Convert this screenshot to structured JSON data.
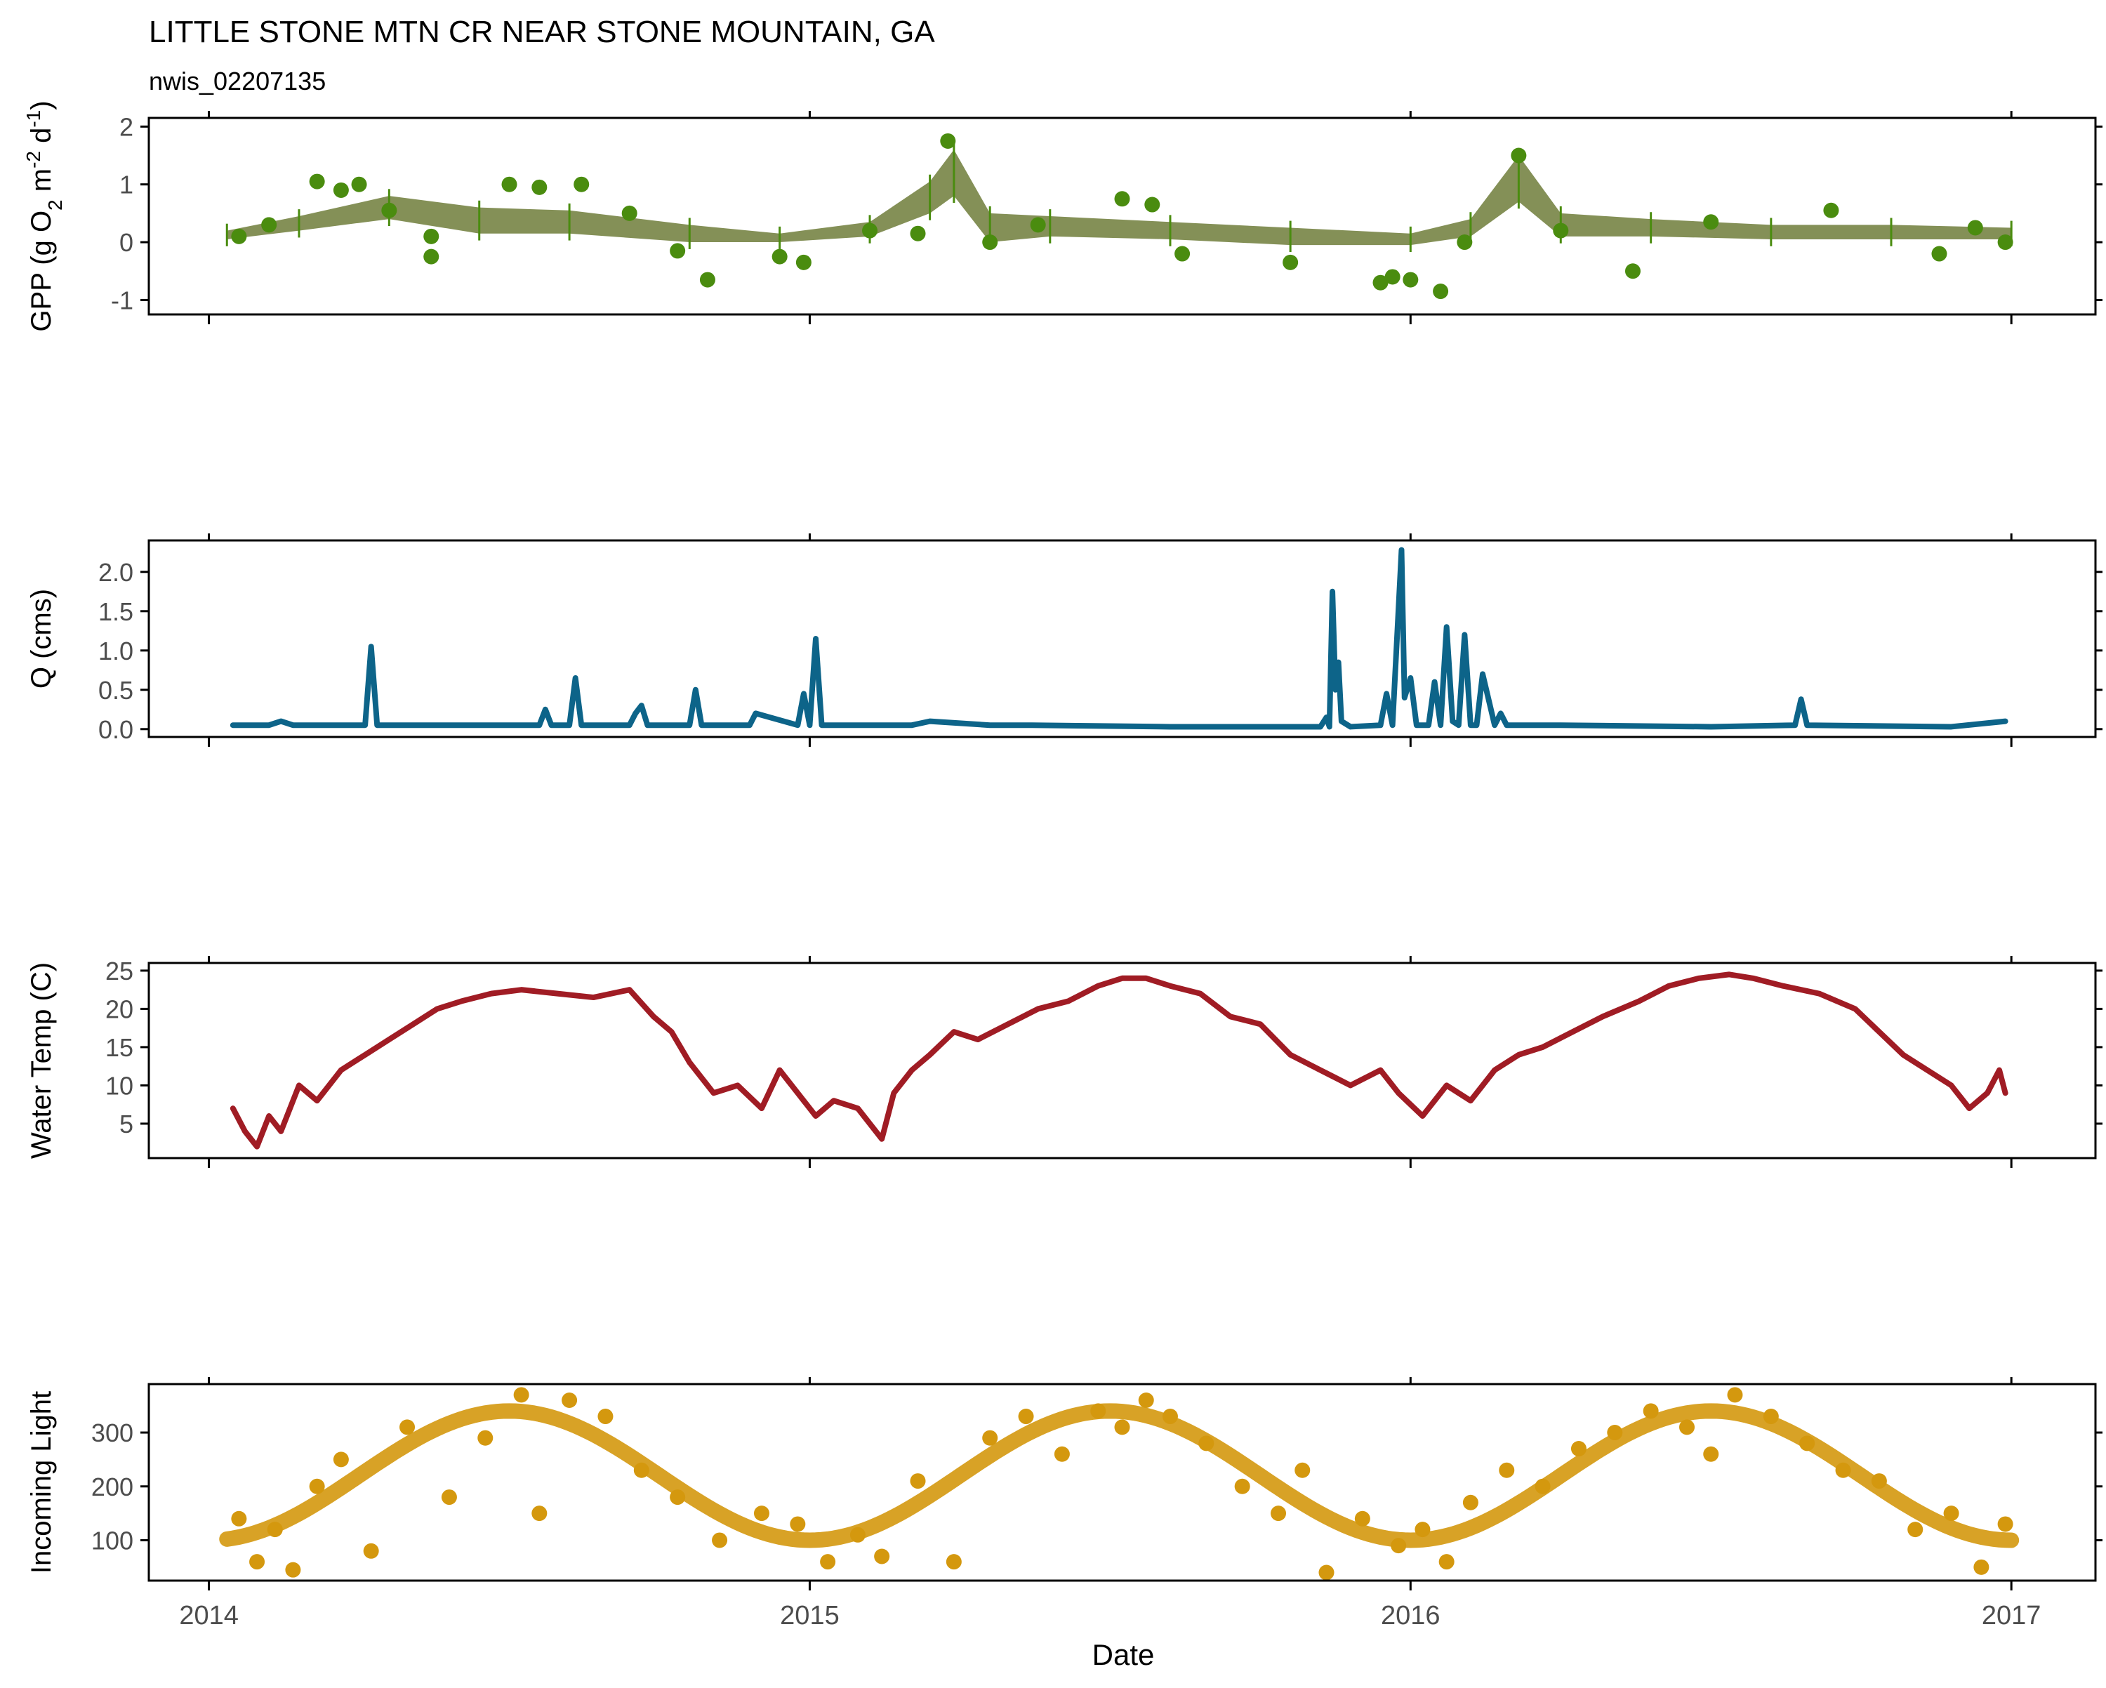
{
  "title": "LITTLE STONE MTN CR NEAR STONE MOUNTAIN, GA",
  "subtitle": "nwis_02207135",
  "xlabel": "Date",
  "colors": {
    "gpp": "#4a8c0f",
    "gpp_band": "#6e7d3a",
    "q": "#0d6489",
    "temp": "#a01c24",
    "light": "#d4980e",
    "axis": "#000000",
    "tick_text": "#4d4d4d"
  },
  "chart_data": [
    {
      "type": "scatter",
      "name": "gpp",
      "ylabel_parts": [
        "GPP (g  O",
        "2",
        " m",
        "-2",
        " d",
        "-1",
        ")"
      ],
      "ylim": [
        -1.25,
        2.15
      ],
      "yticks": [
        -1,
        0,
        1,
        2
      ],
      "yticklabels": [
        "-1",
        "0",
        "1",
        "2"
      ],
      "xlim": [
        2013.9,
        2017.14
      ],
      "xticks": [
        2014,
        2015,
        2016,
        2017
      ],
      "xticklabels": [
        "2014",
        "2015",
        "2016",
        "2017"
      ],
      "band_x": [
        2014.03,
        2014.15,
        2014.3,
        2014.45,
        2014.6,
        2014.8,
        2014.95,
        2015.1,
        2015.2,
        2015.24,
        2015.3,
        2015.4,
        2015.6,
        2015.8,
        2016.0,
        2016.1,
        2016.18,
        2016.25,
        2016.4,
        2016.6,
        2016.8,
        2017.0
      ],
      "band_lo": [
        0.05,
        0.2,
        0.4,
        0.15,
        0.15,
        0.0,
        0.0,
        0.1,
        0.5,
        0.8,
        0.0,
        0.1,
        0.05,
        -0.05,
        -0.05,
        0.1,
        0.7,
        0.1,
        0.1,
        0.05,
        0.05,
        0.05
      ],
      "band_hi": [
        0.2,
        0.45,
        0.8,
        0.6,
        0.55,
        0.3,
        0.15,
        0.35,
        1.05,
        1.6,
        0.5,
        0.45,
        0.35,
        0.25,
        0.15,
        0.4,
        1.5,
        0.5,
        0.4,
        0.3,
        0.3,
        0.25
      ],
      "x": [
        2014.05,
        2014.1,
        2014.18,
        2014.22,
        2014.25,
        2014.3,
        2014.37,
        2014.37,
        2014.5,
        2014.55,
        2014.62,
        2014.7,
        2014.78,
        2014.83,
        2014.95,
        2014.99,
        2015.1,
        2015.18,
        2015.23,
        2015.3,
        2015.38,
        2015.52,
        2015.57,
        2015.62,
        2015.8,
        2015.95,
        2015.97,
        2016.0,
        2016.05,
        2016.09,
        2016.18,
        2016.25,
        2016.37,
        2016.5,
        2016.7,
        2016.88,
        2016.94,
        2016.99
      ],
      "y": [
        0.1,
        0.3,
        1.05,
        0.9,
        1.0,
        0.55,
        -0.25,
        0.1,
        1.0,
        0.95,
        1.0,
        0.5,
        -0.15,
        -0.65,
        -0.25,
        -0.35,
        0.2,
        0.15,
        1.75,
        0.0,
        0.3,
        0.75,
        0.65,
        -0.2,
        -0.35,
        -0.7,
        -0.6,
        -0.65,
        -0.85,
        0.0,
        1.5,
        0.2,
        -0.5,
        0.35,
        0.55,
        -0.2,
        0.25,
        0.0
      ]
    },
    {
      "type": "line",
      "name": "q",
      "ylabel": "Q (cms)",
      "ylim": [
        -0.1,
        2.4
      ],
      "yticks": [
        0.0,
        0.5,
        1.0,
        1.5,
        2.0
      ],
      "yticklabels": [
        "0.0",
        "0.5",
        "1.0",
        "1.5",
        "2.0"
      ],
      "xlim": [
        2013.9,
        2017.14
      ],
      "xticks": [
        2014,
        2015,
        2016,
        2017
      ],
      "x": [
        2014.04,
        2014.1,
        2014.12,
        2014.14,
        2014.18,
        2014.2,
        2014.26,
        2014.27,
        2014.28,
        2014.3,
        2014.36,
        2014.55,
        2014.56,
        2014.57,
        2014.6,
        2014.61,
        2014.62,
        2014.63,
        2014.64,
        2014.7,
        2014.71,
        2014.72,
        2014.73,
        2014.74,
        2014.76,
        2014.8,
        2014.81,
        2014.82,
        2014.9,
        2014.91,
        2014.98,
        2014.99,
        2015.0,
        2015.01,
        2015.02,
        2015.03,
        2015.1,
        2015.17,
        2015.2,
        2015.3,
        2015.37,
        2015.6,
        2015.85,
        2015.86,
        2015.865,
        2015.87,
        2015.875,
        2015.88,
        2015.885,
        2015.9,
        2015.95,
        2015.96,
        2015.97,
        2015.985,
        2015.99,
        2016.0,
        2016.01,
        2016.03,
        2016.04,
        2016.05,
        2016.06,
        2016.07,
        2016.08,
        2016.09,
        2016.1,
        2016.11,
        2016.12,
        2016.14,
        2016.15,
        2016.16,
        2016.2,
        2016.25,
        2016.5,
        2016.64,
        2016.65,
        2016.66,
        2016.9,
        2016.99
      ],
      "y": [
        0.05,
        0.05,
        0.1,
        0.05,
        0.05,
        0.05,
        0.05,
        1.05,
        0.05,
        0.05,
        0.05,
        0.05,
        0.25,
        0.05,
        0.05,
        0.65,
        0.05,
        0.05,
        0.05,
        0.05,
        0.2,
        0.3,
        0.05,
        0.05,
        0.05,
        0.05,
        0.5,
        0.05,
        0.05,
        0.2,
        0.05,
        0.45,
        0.05,
        1.15,
        0.05,
        0.05,
        0.05,
        0.05,
        0.1,
        0.05,
        0.05,
        0.03,
        0.03,
        0.15,
        0.03,
        1.75,
        0.5,
        0.85,
        0.1,
        0.03,
        0.05,
        0.45,
        0.05,
        2.28,
        0.4,
        0.65,
        0.05,
        0.05,
        0.6,
        0.05,
        1.3,
        0.1,
        0.05,
        1.2,
        0.05,
        0.05,
        0.7,
        0.05,
        0.2,
        0.05,
        0.05,
        0.05,
        0.03,
        0.05,
        0.38,
        0.05,
        0.03,
        0.1
      ]
    },
    {
      "type": "line",
      "name": "temp",
      "ylabel": "Water Temp (C)",
      "ylim": [
        0.5,
        26
      ],
      "yticks": [
        5,
        10,
        15,
        20,
        25
      ],
      "yticklabels": [
        "5",
        "10",
        "15",
        "20",
        "25"
      ],
      "xlim": [
        2013.9,
        2017.14
      ],
      "xticks": [
        2014,
        2015,
        2016,
        2017
      ],
      "x": [
        2014.04,
        2014.06,
        2014.08,
        2014.1,
        2014.12,
        2014.15,
        2014.18,
        2014.22,
        2014.26,
        2014.3,
        2014.34,
        2014.38,
        2014.42,
        2014.47,
        2014.52,
        2014.58,
        2014.64,
        2014.7,
        2014.74,
        2014.77,
        2014.8,
        2014.84,
        2014.88,
        2014.92,
        2014.95,
        2014.98,
        2015.01,
        2015.04,
        2015.08,
        2015.12,
        2015.14,
        2015.17,
        2015.2,
        2015.24,
        2015.28,
        2015.33,
        2015.38,
        2015.43,
        2015.48,
        2015.52,
        2015.56,
        2015.6,
        2015.65,
        2015.7,
        2015.75,
        2015.8,
        2015.85,
        2015.9,
        2015.95,
        2015.98,
        2016.02,
        2016.06,
        2016.1,
        2016.14,
        2016.18,
        2016.22,
        2016.27,
        2016.32,
        2016.38,
        2016.43,
        2016.48,
        2016.53,
        2016.57,
        2016.62,
        2016.68,
        2016.74,
        2016.78,
        2016.82,
        2016.86,
        2016.9,
        2016.93,
        2016.96,
        2016.98,
        2016.99
      ],
      "y": [
        7,
        4,
        2,
        6,
        4,
        10,
        8,
        12,
        14,
        16,
        18,
        20,
        21,
        22,
        22.5,
        22,
        21.5,
        22.5,
        19,
        17,
        13,
        9,
        10,
        7,
        12,
        9,
        6,
        8,
        7,
        3,
        9,
        12,
        14,
        17,
        16,
        18,
        20,
        21,
        23,
        24,
        24,
        23,
        22,
        19,
        18,
        14,
        12,
        10,
        12,
        9,
        6,
        10,
        8,
        12,
        14,
        15,
        17,
        19,
        21,
        23,
        24,
        24.5,
        24,
        23,
        22,
        20,
        17,
        14,
        12,
        10,
        7,
        9,
        12,
        9
      ]
    },
    {
      "type": "scatter",
      "name": "light",
      "ylabel": "Incoming Light",
      "ylim": [
        25,
        390
      ],
      "yticks": [
        100,
        200,
        300
      ],
      "yticklabels": [
        "100",
        "200",
        "300"
      ],
      "xlim": [
        2013.9,
        2017.14
      ],
      "xticks": [
        2014,
        2015,
        2016,
        2017
      ],
      "xticklabels": [
        "2014",
        "2015",
        "2016",
        "2017"
      ],
      "trend": {
        "mean": 220,
        "amp": 120,
        "peak": 0.5
      },
      "x": [
        2014.05,
        2014.08,
        2014.11,
        2014.14,
        2014.18,
        2014.22,
        2014.27,
        2014.33,
        2014.4,
        2014.46,
        2014.52,
        2014.55,
        2014.6,
        2014.66,
        2014.72,
        2014.78,
        2014.85,
        2014.92,
        2014.98,
        2015.03,
        2015.08,
        2015.12,
        2015.18,
        2015.24,
        2015.3,
        2015.36,
        2015.42,
        2015.48,
        2015.52,
        2015.56,
        2015.6,
        2015.66,
        2015.72,
        2015.78,
        2015.82,
        2015.86,
        2015.92,
        2015.98,
        2016.02,
        2016.06,
        2016.1,
        2016.16,
        2016.22,
        2016.28,
        2016.34,
        2016.4,
        2016.46,
        2016.5,
        2016.54,
        2016.6,
        2016.66,
        2016.72,
        2016.78,
        2016.84,
        2016.9,
        2016.95,
        2016.99
      ],
      "y": [
        140,
        60,
        120,
        45,
        200,
        250,
        80,
        310,
        180,
        290,
        370,
        150,
        360,
        330,
        230,
        180,
        100,
        150,
        130,
        60,
        110,
        70,
        210,
        60,
        290,
        330,
        260,
        340,
        310,
        360,
        330,
        280,
        200,
        150,
        230,
        40,
        140,
        90,
        120,
        60,
        170,
        230,
        200,
        270,
        300,
        340,
        310,
        260,
        370,
        330,
        280,
        230,
        210,
        120,
        150,
        50,
        130
      ]
    }
  ]
}
